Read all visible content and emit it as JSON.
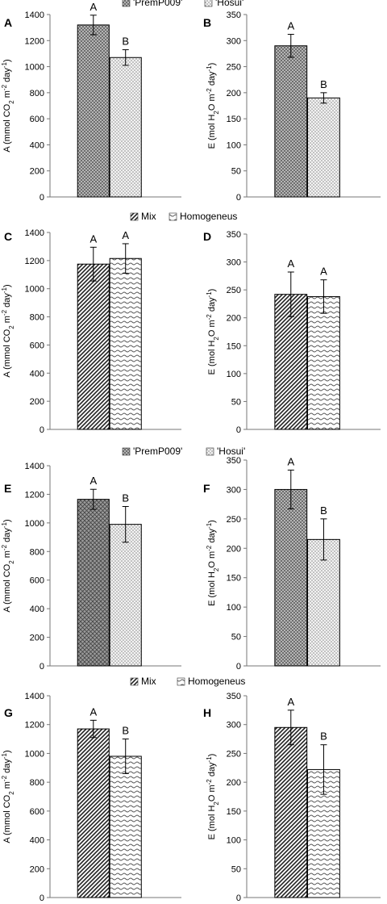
{
  "legends": [
    {
      "items": [
        {
          "label": "'PremP009'",
          "pattern": "dots-dark"
        },
        {
          "label": "'Hosui'",
          "pattern": "dots-light"
        }
      ]
    },
    {
      "items": [
        {
          "label": "Mix",
          "pattern": "diag-dense"
        },
        {
          "label": "Homogeneus",
          "pattern": "wave"
        }
      ]
    },
    {
      "items": [
        {
          "label": "'PremP009'",
          "pattern": "dots-dark"
        },
        {
          "label": "'Hosui'",
          "pattern": "dots-light"
        }
      ]
    },
    {
      "items": [
        {
          "label": "Mix",
          "pattern": "diag-dense"
        },
        {
          "label": "Homogeneus",
          "pattern": "wave"
        }
      ]
    }
  ],
  "chart_data": [
    {
      "panel": "A",
      "type": "bar",
      "ylabel": "A (mmol CO2 m-2 day-1)",
      "ylim": [
        0,
        1400
      ],
      "yticks": [
        0,
        200,
        400,
        600,
        800,
        1000,
        1200,
        1400
      ],
      "bars": [
        {
          "value": 1320,
          "error": 75,
          "sig": "A",
          "pattern": "dots-dark"
        },
        {
          "value": 1070,
          "error": 60,
          "sig": "B",
          "pattern": "dots-light"
        }
      ]
    },
    {
      "panel": "B",
      "type": "bar",
      "ylabel": "E (mol H2O m-2 day-1)",
      "ylim": [
        0,
        350
      ],
      "yticks": [
        0,
        50,
        100,
        150,
        200,
        250,
        300,
        350
      ],
      "bars": [
        {
          "value": 290,
          "error": 22,
          "sig": "A",
          "pattern": "dots-dark"
        },
        {
          "value": 190,
          "error": 10,
          "sig": "B",
          "pattern": "dots-light"
        }
      ]
    },
    {
      "panel": "C",
      "type": "bar",
      "ylabel": "A (mmol CO2 m-2 day-1)",
      "ylim": [
        0,
        1400
      ],
      "yticks": [
        0,
        200,
        400,
        600,
        800,
        1000,
        1200,
        1400
      ],
      "bars": [
        {
          "value": 1175,
          "error": 120,
          "sig": "A",
          "pattern": "diag-dense"
        },
        {
          "value": 1215,
          "error": 105,
          "sig": "A",
          "pattern": "wave"
        }
      ]
    },
    {
      "panel": "D",
      "type": "bar",
      "ylabel": "E (mol H2O m-2 day-1)",
      "ylim": [
        0,
        350
      ],
      "yticks": [
        0,
        50,
        100,
        150,
        200,
        250,
        300,
        350
      ],
      "bars": [
        {
          "value": 242,
          "error": 40,
          "sig": "A",
          "pattern": "diag-dense"
        },
        {
          "value": 238,
          "error": 30,
          "sig": "A",
          "pattern": "wave"
        }
      ]
    },
    {
      "panel": "E",
      "type": "bar",
      "ylabel": "A (mmol CO2 m-2 day-1)",
      "ylim": [
        0,
        1400
      ],
      "yticks": [
        0,
        200,
        400,
        600,
        800,
        1000,
        1200,
        1400
      ],
      "bars": [
        {
          "value": 1165,
          "error": 70,
          "sig": "A",
          "pattern": "cross-hatch"
        },
        {
          "value": 990,
          "error": 125,
          "sig": "B",
          "pattern": "dots-light"
        }
      ]
    },
    {
      "panel": "F",
      "type": "bar",
      "ylabel": "E (mol H2O m-2 day-1)",
      "ylim": [
        0,
        350
      ],
      "yticks": [
        0,
        50,
        100,
        150,
        200,
        250,
        300,
        350
      ],
      "bars": [
        {
          "value": 300,
          "error": 33,
          "sig": "A",
          "pattern": "dots-dark"
        },
        {
          "value": 215,
          "error": 35,
          "sig": "B",
          "pattern": "dots-light"
        }
      ]
    },
    {
      "panel": "G",
      "type": "bar",
      "ylabel": "A (mmol CO2 m-2 day-1)",
      "ylim": [
        0,
        1400
      ],
      "yticks": [
        0,
        200,
        400,
        600,
        800,
        1000,
        1200,
        1400
      ],
      "bars": [
        {
          "value": 1170,
          "error": 60,
          "sig": "A",
          "pattern": "diag-dense"
        },
        {
          "value": 980,
          "error": 120,
          "sig": "B",
          "pattern": "wave"
        }
      ]
    },
    {
      "panel": "H",
      "type": "bar",
      "ylabel": "E (mol H2O m-2 day-1)",
      "ylim": [
        0,
        350
      ],
      "yticks": [
        0,
        50,
        100,
        150,
        200,
        250,
        300,
        350
      ],
      "bars": [
        {
          "value": 295,
          "error": 30,
          "sig": "A",
          "pattern": "diag-dense"
        },
        {
          "value": 222,
          "error": 43,
          "sig": "B",
          "pattern": "wave"
        }
      ]
    }
  ]
}
